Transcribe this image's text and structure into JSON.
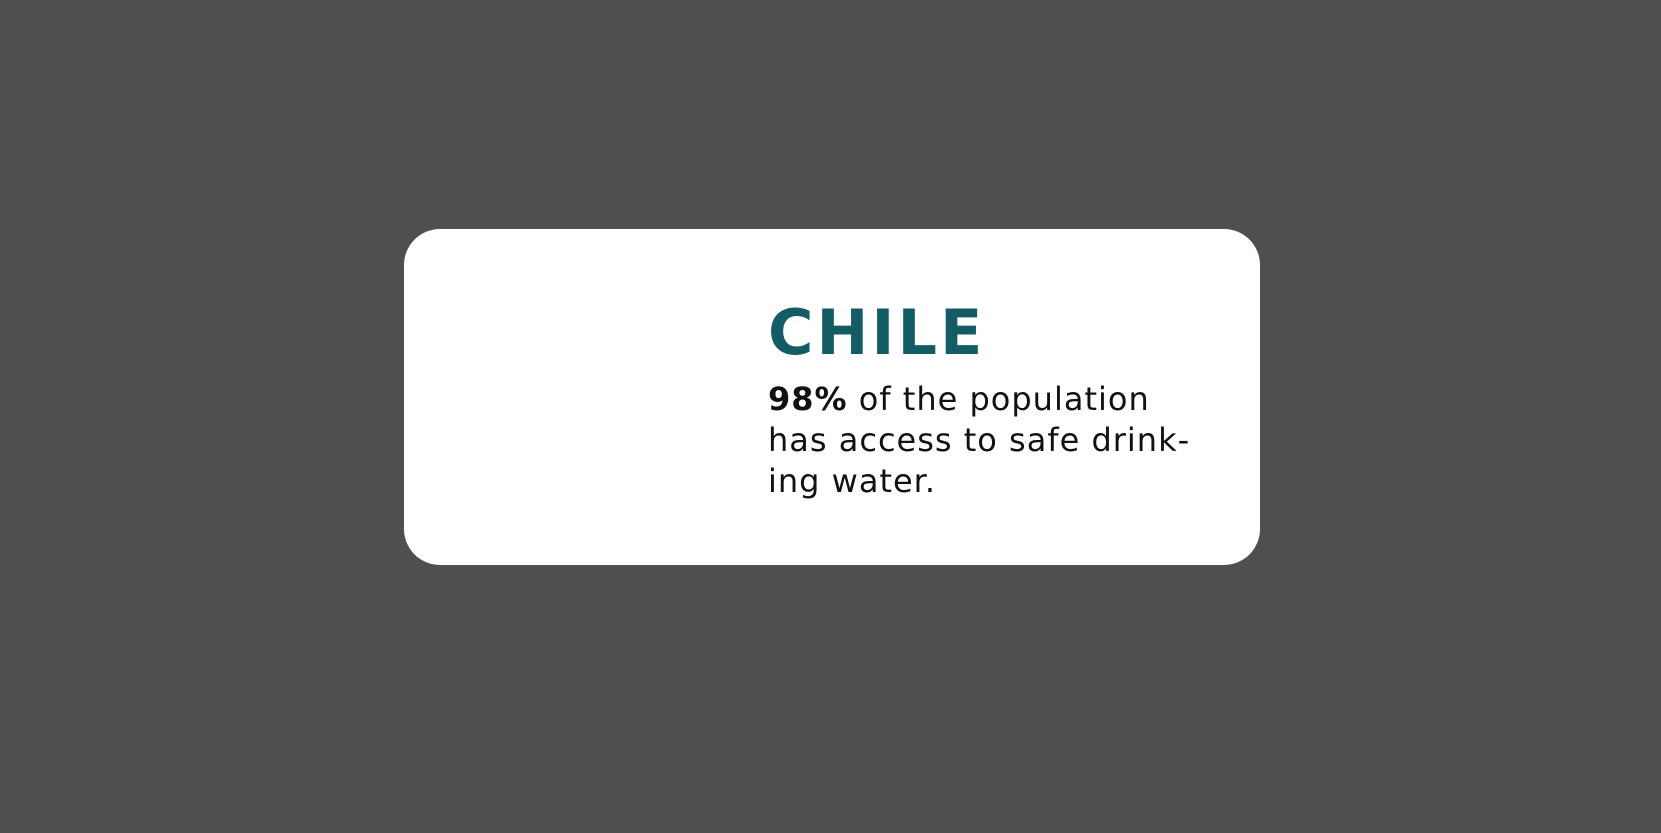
{
  "card": {
    "country": "CHILE",
    "stat": "98%",
    "line1_rest": " of the population",
    "line2": "has access to safe drink-",
    "line3": "ing water."
  },
  "colors": {
    "background": "#4f4f4f",
    "card": "#ffffff",
    "accent": "#135c66",
    "text": "#111111"
  }
}
